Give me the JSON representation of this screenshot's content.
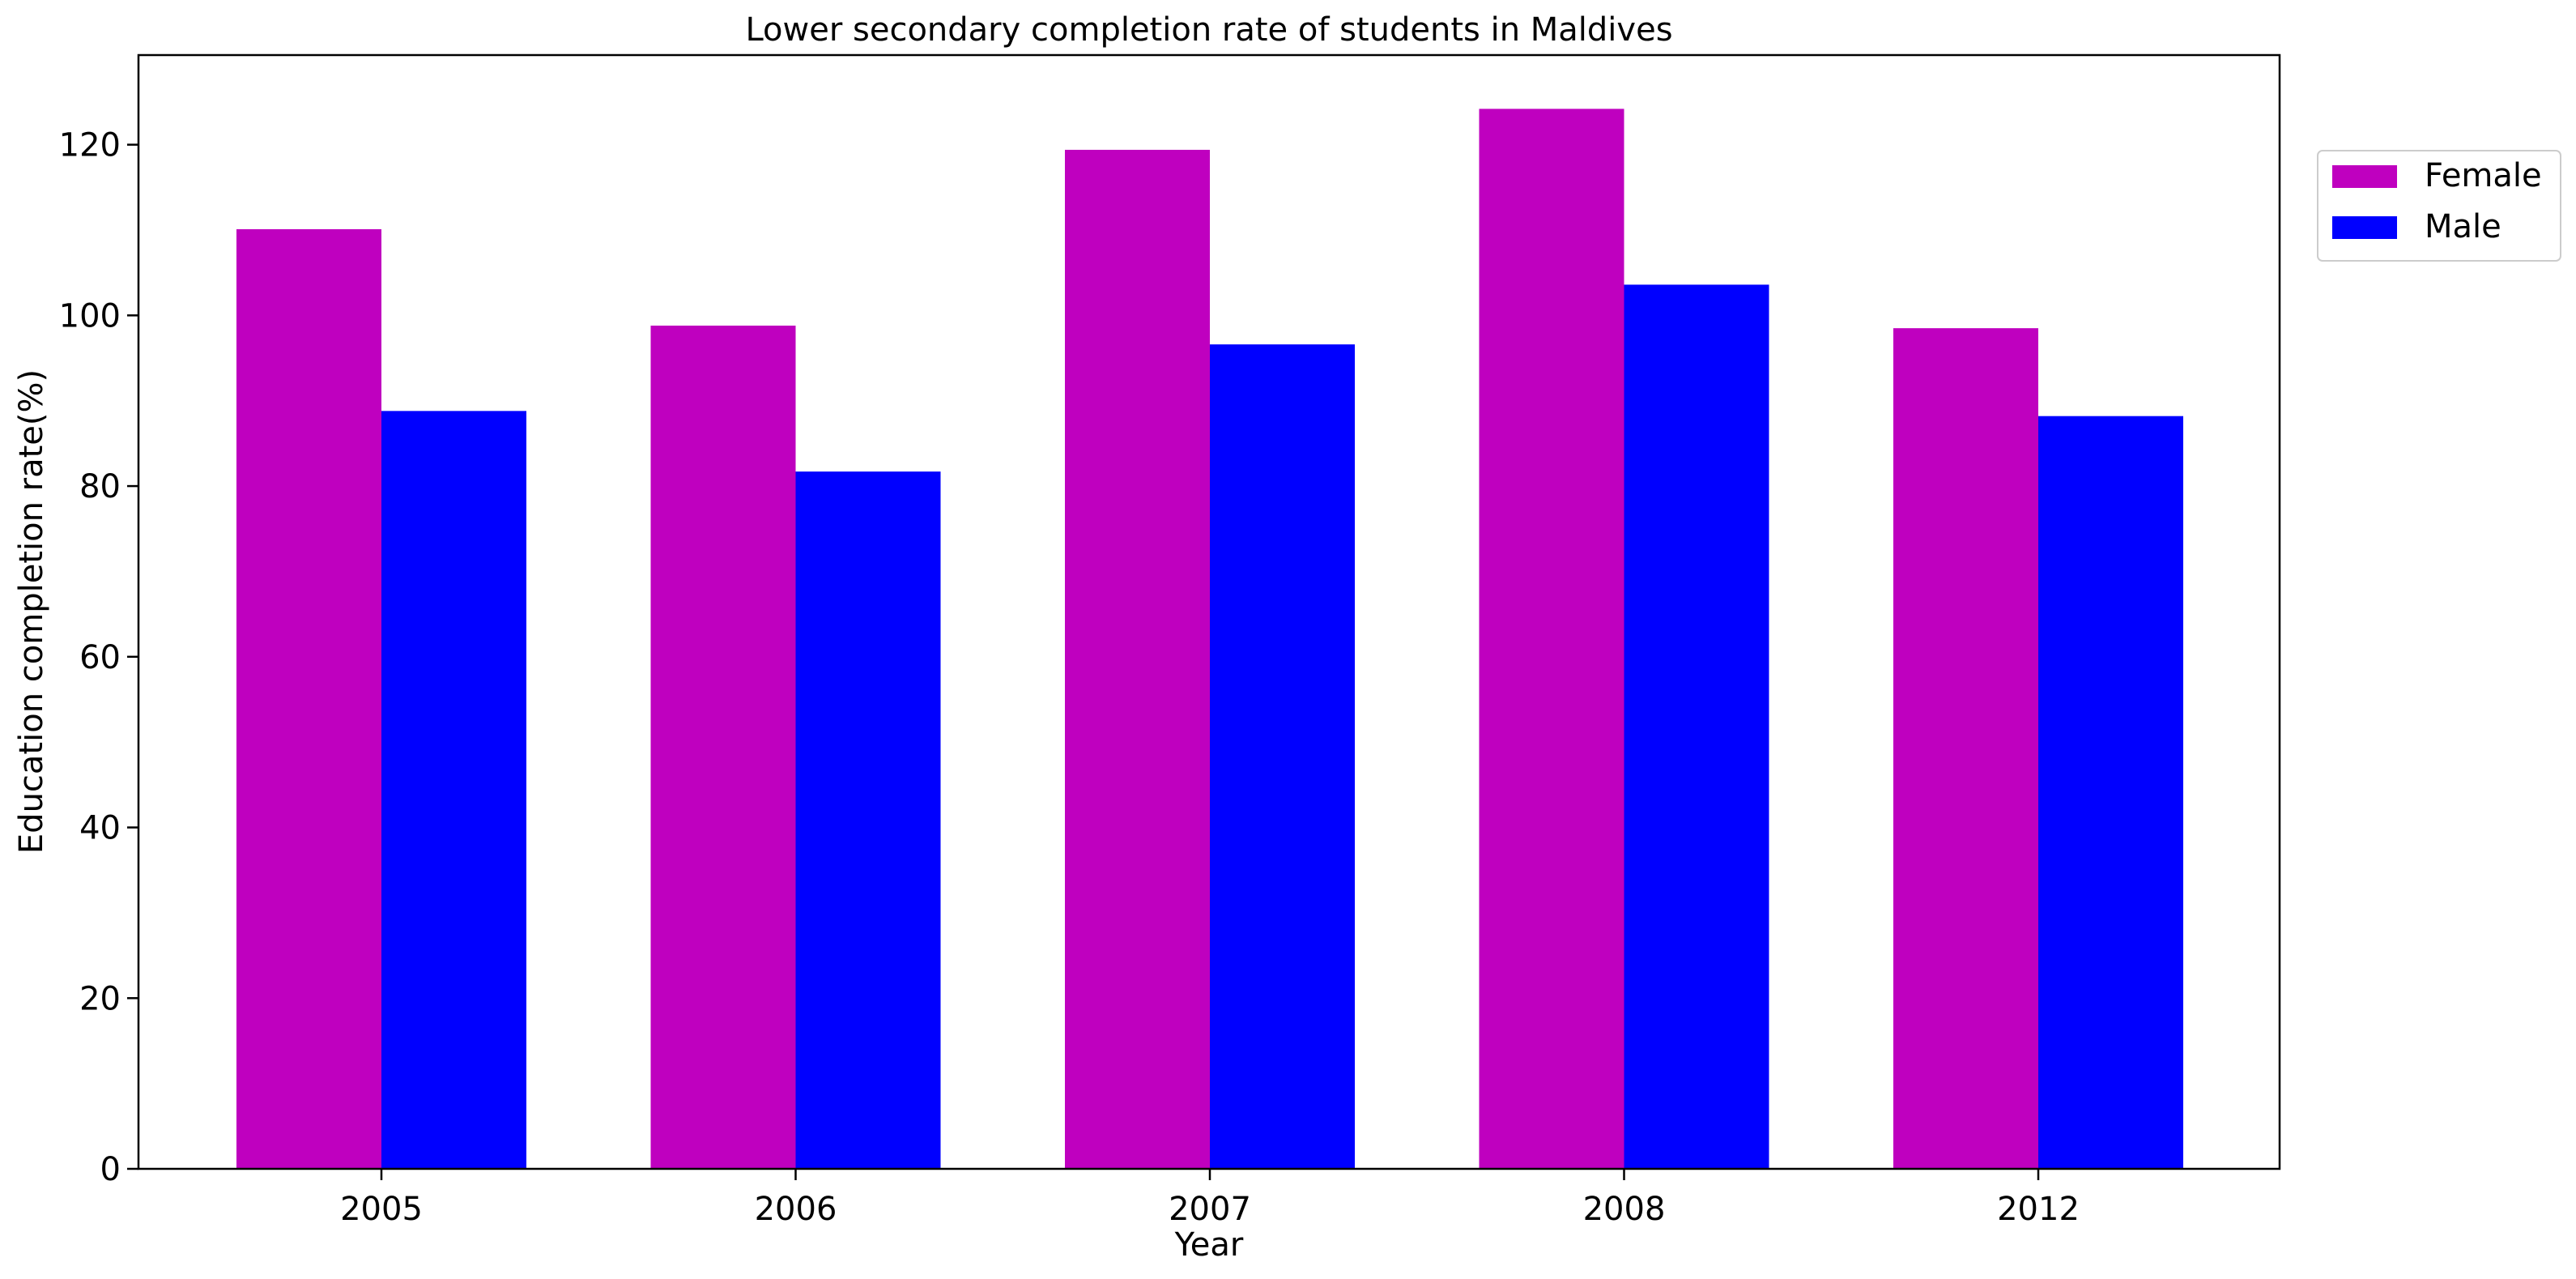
{
  "chart_data": {
    "type": "bar",
    "title": "Lower secondary completion rate of students in Maldives",
    "xlabel": "Year",
    "ylabel": "Education completion rate(%)",
    "categories": [
      "2005",
      "2006",
      "2007",
      "2008",
      "2012"
    ],
    "series": [
      {
        "name": "Female",
        "color": "#bf00bf",
        "values": [
          110.1,
          98.8,
          119.4,
          124.2,
          98.5
        ]
      },
      {
        "name": "Male",
        "color": "#0000ff",
        "values": [
          88.8,
          81.7,
          96.6,
          103.6,
          88.2
        ]
      }
    ],
    "ylim": [
      0,
      130.5
    ],
    "yticks": [
      0,
      20,
      40,
      60,
      80,
      100,
      120
    ],
    "grid": false,
    "legend_position": "upper right, outside plot"
  }
}
